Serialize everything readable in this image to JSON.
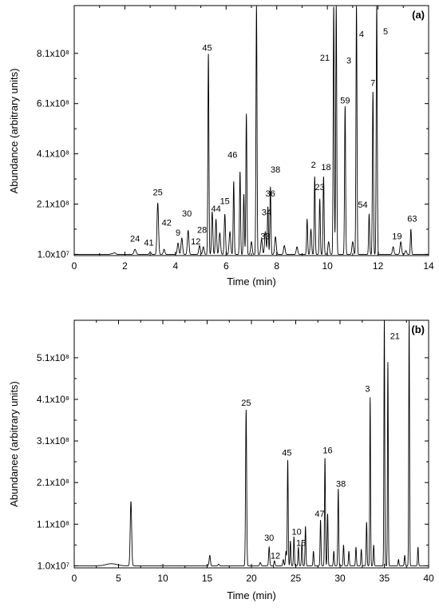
{
  "chart_data": [
    {
      "type": "line",
      "panel_label": "(a)",
      "xlabel": "Time (min)",
      "ylabel": "Abundance (arbitrary units)",
      "xlim": [
        0,
        14
      ],
      "xticks": [
        "0",
        "2",
        "4",
        "6",
        "8",
        "10",
        "12",
        "14"
      ],
      "xtick_values": [
        0,
        2,
        4,
        6,
        8,
        10,
        12,
        14
      ],
      "ylim": [
        5000000,
        1000000000
      ],
      "ytick_labels": [
        "1.0x10⁷",
        "2.1x10⁸",
        "4.1x10⁸",
        "6.1x10⁸",
        "8.1x10⁸"
      ],
      "ytick_values": [
        10000000,
        210000000,
        410000000,
        610000000,
        810000000
      ],
      "baseline": 10000000,
      "peaks": [
        {
          "t": 1.5,
          "h": 13000000,
          "w": 0.05
        },
        {
          "t": 1.6,
          "h": 16000000,
          "w": 0.04
        },
        {
          "t": 2.4,
          "h": 30000000,
          "w": 0.04
        },
        {
          "t": 3.0,
          "h": 20000000,
          "w": 0.03
        },
        {
          "t": 3.3,
          "h": 215000000,
          "w": 0.03
        },
        {
          "t": 3.55,
          "h": 30000000,
          "w": 0.03
        },
        {
          "t": 4.1,
          "h": 55000000,
          "w": 0.03
        },
        {
          "t": 4.25,
          "h": 75000000,
          "w": 0.03
        },
        {
          "t": 4.5,
          "h": 105000000,
          "w": 0.03
        },
        {
          "t": 4.95,
          "h": 45000000,
          "w": 0.03
        },
        {
          "t": 5.1,
          "h": 40000000,
          "w": 0.03
        },
        {
          "t": 5.3,
          "h": 810000000,
          "w": 0.02
        },
        {
          "t": 5.45,
          "h": 180000000,
          "w": 0.025
        },
        {
          "t": 5.6,
          "h": 150000000,
          "w": 0.025
        },
        {
          "t": 5.75,
          "h": 95000000,
          "w": 0.03
        },
        {
          "t": 5.95,
          "h": 170000000,
          "w": 0.025
        },
        {
          "t": 6.15,
          "h": 100000000,
          "w": 0.03
        },
        {
          "t": 6.3,
          "h": 300000000,
          "w": 0.02
        },
        {
          "t": 6.55,
          "h": 340000000,
          "w": 0.02
        },
        {
          "t": 6.7,
          "h": 250000000,
          "w": 0.02
        },
        {
          "t": 6.8,
          "h": 570000000,
          "w": 0.02
        },
        {
          "t": 7.0,
          "h": 60000000,
          "w": 0.03
        },
        {
          "t": 7.2,
          "h": 1000000000,
          "w": 0.02
        },
        {
          "t": 7.4,
          "h": 70000000,
          "w": 0.03
        },
        {
          "t": 7.55,
          "h": 100000000,
          "w": 0.03
        },
        {
          "t": 7.65,
          "h": 200000000,
          "w": 0.02
        },
        {
          "t": 7.75,
          "h": 280000000,
          "w": 0.02
        },
        {
          "t": 7.95,
          "h": 80000000,
          "w": 0.03
        },
        {
          "t": 8.3,
          "h": 45000000,
          "w": 0.03
        },
        {
          "t": 8.8,
          "h": 40000000,
          "w": 0.03
        },
        {
          "t": 9.2,
          "h": 150000000,
          "w": 0.02
        },
        {
          "t": 9.35,
          "h": 110000000,
          "w": 0.025
        },
        {
          "t": 9.5,
          "h": 320000000,
          "w": 0.02
        },
        {
          "t": 9.7,
          "h": 230000000,
          "w": 0.02
        },
        {
          "t": 9.85,
          "h": 320000000,
          "w": 0.02
        },
        {
          "t": 10.05,
          "h": 60000000,
          "w": 0.03
        },
        {
          "t": 10.25,
          "h": 1000000000,
          "w": 0.02
        },
        {
          "t": 10.35,
          "h": 1000000000,
          "w": 0.02
        },
        {
          "t": 10.7,
          "h": 600000000,
          "w": 0.02
        },
        {
          "t": 11.0,
          "h": 60000000,
          "w": 0.03
        },
        {
          "t": 11.15,
          "h": 1000000000,
          "w": 0.02
        },
        {
          "t": 11.65,
          "h": 170000000,
          "w": 0.02
        },
        {
          "t": 11.8,
          "h": 660000000,
          "w": 0.02
        },
        {
          "t": 11.95,
          "h": 1000000000,
          "w": 0.02
        },
        {
          "t": 12.6,
          "h": 40000000,
          "w": 0.03
        },
        {
          "t": 12.9,
          "h": 60000000,
          "w": 0.03
        },
        {
          "t": 13.1,
          "h": 25000000,
          "w": 0.03
        },
        {
          "t": 13.3,
          "h": 110000000,
          "w": 0.02
        }
      ],
      "annotations": [
        {
          "text": "24",
          "x": 2.4,
          "y": 60000000
        },
        {
          "text": "41",
          "x": 2.95,
          "y": 45000000
        },
        {
          "text": "25",
          "x": 3.3,
          "y": 245000000
        },
        {
          "text": "42",
          "x": 3.65,
          "y": 125000000
        },
        {
          "text": "9",
          "x": 4.1,
          "y": 85000000
        },
        {
          "text": "30",
          "x": 4.45,
          "y": 160000000
        },
        {
          "text": "12",
          "x": 4.8,
          "y": 50000000
        },
        {
          "text": "28",
          "x": 5.05,
          "y": 95000000
        },
        {
          "text": "45",
          "x": 5.25,
          "y": 820000000
        },
        {
          "text": "44",
          "x": 5.6,
          "y": 180000000
        },
        {
          "text": "15",
          "x": 5.95,
          "y": 210000000
        },
        {
          "text": "46",
          "x": 6.25,
          "y": 395000000
        },
        {
          "text": "33",
          "x": 7.55,
          "y": 70000000
        },
        {
          "text": "34",
          "x": 7.6,
          "y": 165000000
        },
        {
          "text": "36",
          "x": 7.75,
          "y": 240000000
        },
        {
          "text": "38",
          "x": 7.95,
          "y": 335000000
        },
        {
          "text": "2",
          "x": 9.45,
          "y": 355000000
        },
        {
          "text": "23",
          "x": 9.7,
          "y": 265000000
        },
        {
          "text": "18",
          "x": 9.95,
          "y": 345000000
        },
        {
          "text": "21",
          "x": 9.9,
          "y": 780000000
        },
        {
          "text": "3",
          "x": 10.85,
          "y": 770000000
        },
        {
          "text": "4",
          "x": 11.35,
          "y": 875000000
        },
        {
          "text": "5",
          "x": 12.3,
          "y": 885000000
        },
        {
          "text": "59",
          "x": 10.7,
          "y": 610000000
        },
        {
          "text": "7",
          "x": 11.8,
          "y": 680000000
        },
        {
          "text": "54",
          "x": 11.4,
          "y": 195000000
        },
        {
          "text": "19",
          "x": 12.75,
          "y": 70000000
        },
        {
          "text": "63",
          "x": 13.35,
          "y": 140000000
        }
      ]
    },
    {
      "type": "line",
      "panel_label": "(b)",
      "xlabel": "Time (min)",
      "ylabel": "Abundanee (arbitrary units)",
      "xlim": [
        0,
        40
      ],
      "xticks": [
        "0",
        "5",
        "10",
        "15",
        "20",
        "25",
        "30",
        "35",
        "40"
      ],
      "xtick_values": [
        0,
        5,
        10,
        15,
        20,
        25,
        30,
        35,
        40
      ],
      "ylim": [
        5000000,
        600000000
      ],
      "ytick_labels": [
        "1.0x10⁷",
        "1.1x10⁸",
        "2.1x10⁸",
        "3.1x10⁸",
        "4.1x10⁸",
        "5.1x10⁸"
      ],
      "ytick_values": [
        10000000,
        110000000,
        210000000,
        310000000,
        410000000,
        510000000
      ],
      "baseline": 10000000,
      "peaks": [
        {
          "t": 4.2,
          "h": 15000000,
          "w": 0.6
        },
        {
          "t": 6.4,
          "h": 165000000,
          "w": 0.08
        },
        {
          "t": 15.3,
          "h": 35000000,
          "w": 0.07
        },
        {
          "t": 16.3,
          "h": 14000000,
          "w": 0.07
        },
        {
          "t": 19.4,
          "h": 385000000,
          "w": 0.06
        },
        {
          "t": 21.0,
          "h": 18000000,
          "w": 0.07
        },
        {
          "t": 22.0,
          "h": 55000000,
          "w": 0.06
        },
        {
          "t": 22.6,
          "h": 22000000,
          "w": 0.06
        },
        {
          "t": 23.6,
          "h": 25000000,
          "w": 0.06
        },
        {
          "t": 23.9,
          "h": 45000000,
          "w": 0.06
        },
        {
          "t": 24.1,
          "h": 265000000,
          "w": 0.05
        },
        {
          "t": 24.4,
          "h": 70000000,
          "w": 0.05
        },
        {
          "t": 24.8,
          "h": 80000000,
          "w": 0.05
        },
        {
          "t": 25.3,
          "h": 55000000,
          "w": 0.05
        },
        {
          "t": 25.7,
          "h": 65000000,
          "w": 0.05
        },
        {
          "t": 26.1,
          "h": 105000000,
          "w": 0.05
        },
        {
          "t": 27.0,
          "h": 45000000,
          "w": 0.05
        },
        {
          "t": 27.8,
          "h": 120000000,
          "w": 0.05
        },
        {
          "t": 28.3,
          "h": 270000000,
          "w": 0.05
        },
        {
          "t": 28.6,
          "h": 135000000,
          "w": 0.05
        },
        {
          "t": 29.3,
          "h": 45000000,
          "w": 0.05
        },
        {
          "t": 29.8,
          "h": 195000000,
          "w": 0.05
        },
        {
          "t": 30.4,
          "h": 60000000,
          "w": 0.05
        },
        {
          "t": 31.0,
          "h": 45000000,
          "w": 0.05
        },
        {
          "t": 31.8,
          "h": 55000000,
          "w": 0.05
        },
        {
          "t": 32.4,
          "h": 50000000,
          "w": 0.05
        },
        {
          "t": 33.0,
          "h": 115000000,
          "w": 0.05
        },
        {
          "t": 33.4,
          "h": 415000000,
          "w": 0.045
        },
        {
          "t": 33.8,
          "h": 60000000,
          "w": 0.05
        },
        {
          "t": 35.0,
          "h": 600000000,
          "w": 0.045
        },
        {
          "t": 35.4,
          "h": 500000000,
          "w": 0.045
        },
        {
          "t": 36.6,
          "h": 25000000,
          "w": 0.05
        },
        {
          "t": 37.3,
          "h": 35000000,
          "w": 0.05
        },
        {
          "t": 37.8,
          "h": 600000000,
          "w": 0.045
        },
        {
          "t": 38.8,
          "h": 55000000,
          "w": 0.05
        }
      ],
      "annotations": [
        {
          "text": "25",
          "x": 19.4,
          "y": 395000000
        },
        {
          "text": "30",
          "x": 22.0,
          "y": 70000000
        },
        {
          "text": "12",
          "x": 22.7,
          "y": 27000000
        },
        {
          "text": "45",
          "x": 24.0,
          "y": 275000000
        },
        {
          "text": "10",
          "x": 25.1,
          "y": 85000000
        },
        {
          "text": "15",
          "x": 25.6,
          "y": 58000000
        },
        {
          "text": "47",
          "x": 27.7,
          "y": 128000000
        },
        {
          "text": "16",
          "x": 28.6,
          "y": 280000000
        },
        {
          "text": "38",
          "x": 30.1,
          "y": 200000000
        },
        {
          "text": "3",
          "x": 33.1,
          "y": 428000000
        },
        {
          "text": "21",
          "x": 36.2,
          "y": 555000000
        }
      ]
    }
  ]
}
